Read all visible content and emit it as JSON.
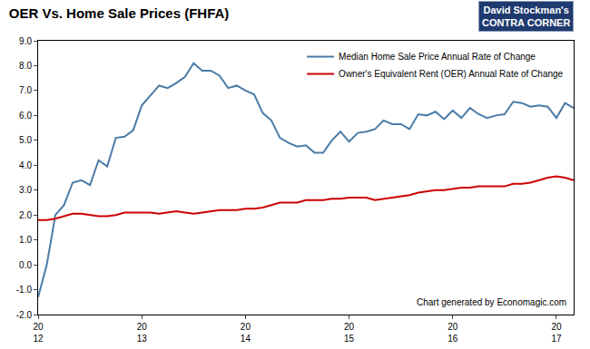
{
  "chart_data": {
    "type": "line",
    "title": "OER Vs. Home Sale Prices (FHFA)",
    "categories": [
      "20\n12",
      null,
      null,
      null,
      null,
      null,
      null,
      null,
      null,
      null,
      null,
      null,
      "20\n13",
      null,
      null,
      null,
      null,
      null,
      null,
      null,
      null,
      null,
      null,
      null,
      "20\n14",
      null,
      null,
      null,
      null,
      null,
      null,
      null,
      null,
      null,
      null,
      null,
      "20\n15",
      null,
      null,
      null,
      null,
      null,
      null,
      null,
      null,
      null,
      null,
      null,
      "20\n16",
      null,
      null,
      null,
      null,
      null,
      null,
      null,
      null,
      null,
      null,
      null,
      "20\n17",
      null,
      null
    ],
    "series": [
      {
        "name": "Median Home Sale Price Annual Rate of Change",
        "color": "#4a7ba7",
        "values": [
          -1.3,
          0.0,
          2.0,
          2.4,
          3.3,
          3.4,
          3.2,
          4.2,
          3.95,
          5.1,
          5.15,
          5.4,
          6.4,
          6.8,
          7.2,
          7.1,
          7.3,
          7.55,
          8.1,
          7.8,
          7.8,
          7.6,
          7.1,
          7.2,
          7.0,
          6.85,
          6.1,
          5.8,
          5.1,
          4.9,
          4.75,
          4.8,
          4.5,
          4.5,
          5.0,
          5.35,
          4.95,
          5.3,
          5.35,
          5.45,
          5.8,
          5.65,
          5.65,
          5.45,
          6.05,
          6.0,
          6.15,
          5.85,
          6.2,
          5.9,
          6.3,
          6.05,
          5.9,
          6.0,
          6.05,
          6.55,
          6.5,
          6.35,
          6.4,
          6.35,
          5.9,
          6.5,
          6.3
        ]
      },
      {
        "name": "Owner's Equivalent Rent (OER) Annual Rate of Change",
        "color": "#cc0000",
        "values": [
          1.8,
          1.8,
          1.85,
          1.95,
          2.05,
          2.05,
          2.0,
          1.95,
          1.95,
          2.0,
          2.1,
          2.1,
          2.1,
          2.1,
          2.05,
          2.1,
          2.15,
          2.1,
          2.05,
          2.1,
          2.15,
          2.2,
          2.2,
          2.2,
          2.25,
          2.25,
          2.3,
          2.4,
          2.5,
          2.5,
          2.5,
          2.6,
          2.6,
          2.6,
          2.65,
          2.65,
          2.7,
          2.7,
          2.7,
          2.6,
          2.65,
          2.7,
          2.75,
          2.8,
          2.9,
          2.95,
          3.0,
          3.0,
          3.05,
          3.1,
          3.1,
          3.15,
          3.15,
          3.15,
          3.15,
          3.25,
          3.25,
          3.3,
          3.4,
          3.5,
          3.55,
          3.5,
          3.4
        ]
      }
    ],
    "ylim": [
      -2,
      9
    ],
    "yticks": [
      {
        "value": -2,
        "label": "-2.0"
      },
      {
        "value": -1,
        "label": "-1.0"
      },
      {
        "value": 0,
        "label": "0.0"
      },
      {
        "value": 1,
        "label": "1.0"
      },
      {
        "value": 2,
        "label": "2.0"
      },
      {
        "value": 3,
        "label": "3.0"
      },
      {
        "value": 4,
        "label": "4.0"
      },
      {
        "value": 5,
        "label": "5.0"
      },
      {
        "value": 6,
        "label": "6.0"
      },
      {
        "value": 7,
        "label": "7.0"
      },
      {
        "value": 8,
        "label": "8.0"
      },
      {
        "value": 9,
        "label": "9.0"
      }
    ],
    "grid": false,
    "legend": "top right",
    "annotations": [
      "Chart generated by Economagic.com",
      "David Stockman's\nCONTRA CORNER"
    ]
  }
}
